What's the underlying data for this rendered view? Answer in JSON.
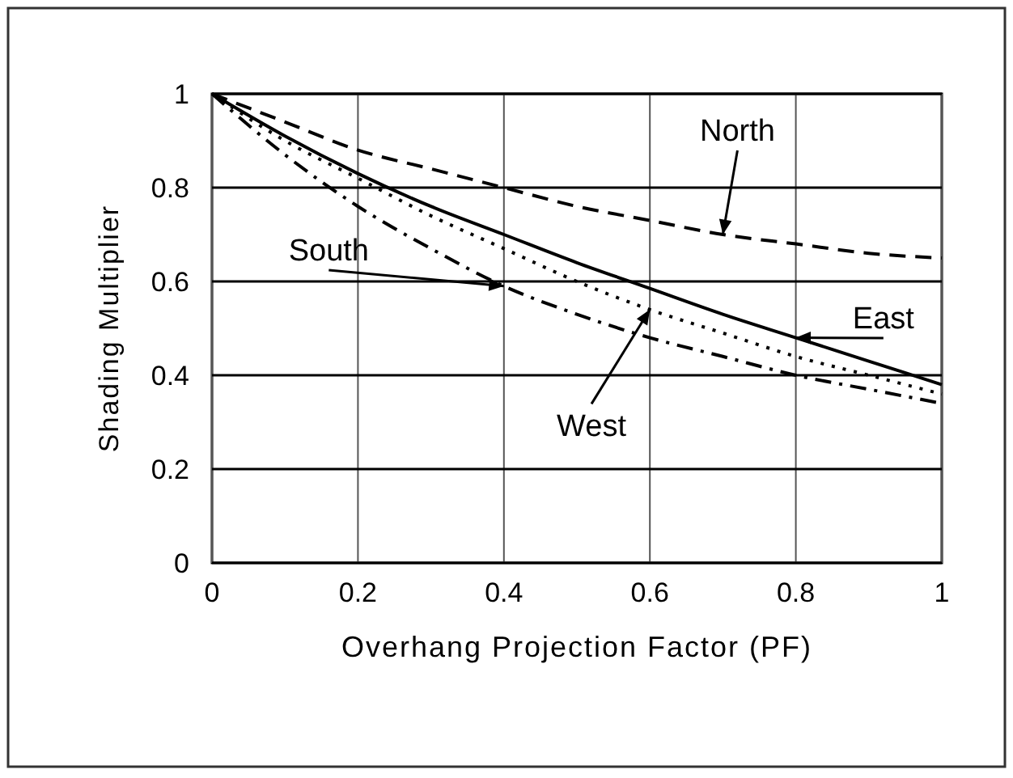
{
  "chart_data": {
    "type": "line",
    "xlabel": "Overhang Projection Factor (PF)",
    "ylabel": "Shading Multiplier",
    "x": [
      0,
      0.1,
      0.2,
      0.3,
      0.4,
      0.5,
      0.6,
      0.7,
      0.8,
      0.9,
      1
    ],
    "xlim": [
      0,
      1
    ],
    "ylim": [
      0,
      1
    ],
    "xticks": [
      0,
      0.2,
      0.4,
      0.6,
      0.8,
      1
    ],
    "yticks": [
      0,
      0.2,
      0.4,
      0.6,
      0.8,
      1
    ],
    "grid": true,
    "series": [
      {
        "name": "North",
        "color": "#000000",
        "line_style": "dashed",
        "values": [
          1,
          0.94,
          0.88,
          0.84,
          0.8,
          0.76,
          0.73,
          0.7,
          0.68,
          0.66,
          0.65
        ]
      },
      {
        "name": "East",
        "color": "#000000",
        "line_style": "solid",
        "values": [
          1,
          0.91,
          0.83,
          0.76,
          0.7,
          0.64,
          0.585,
          0.53,
          0.48,
          0.43,
          0.38
        ]
      },
      {
        "name": "West",
        "color": "#000000",
        "line_style": "dotted",
        "values": [
          1,
          0.9,
          0.82,
          0.74,
          0.67,
          0.6,
          0.54,
          0.49,
          0.44,
          0.4,
          0.36
        ]
      },
      {
        "name": "South",
        "color": "#000000",
        "line_style": "dashdot",
        "values": [
          1,
          0.87,
          0.76,
          0.67,
          0.59,
          0.53,
          0.48,
          0.44,
          0.4,
          0.37,
          0.34
        ]
      }
    ]
  }
}
